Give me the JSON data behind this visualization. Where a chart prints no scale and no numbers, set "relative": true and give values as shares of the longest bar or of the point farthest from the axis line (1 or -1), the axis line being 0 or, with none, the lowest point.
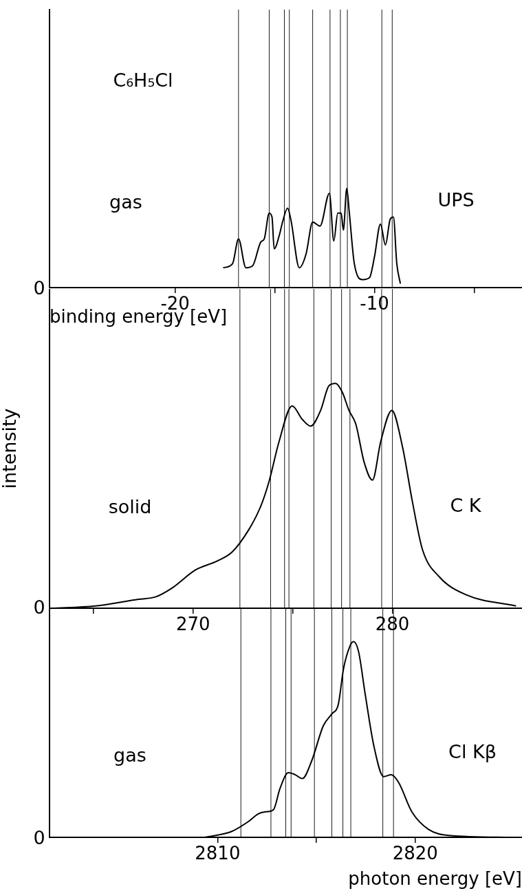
{
  "chart_data": [
    {
      "type": "line",
      "relative": true,
      "xlabel": "binding energy [eV]",
      "annotations": [
        "C₆H₅Cl",
        "gas",
        "UPS",
        "0"
      ],
      "xlim": [
        -26.3,
        -2.6
      ],
      "xticks": [
        -20,
        {
          "value": -15,
          "label": null
        },
        -10,
        {
          "value": -5,
          "label": null
        }
      ],
      "x": [
        -17.59,
        -17.12,
        -16.82,
        -16.45,
        -16.11,
        -15.7,
        -15.53,
        -15.28,
        -15.14,
        -15.03,
        -14.77,
        -14.61,
        -14.36,
        -14.19,
        -13.77,
        -13.43,
        -13.1,
        -12.73,
        -12.26,
        -12.04,
        -11.84,
        -11.67,
        -11.56,
        -11.39,
        -11.26,
        -11.01,
        -10.59,
        -10.25,
        -10.0,
        -9.7,
        -9.45,
        -9.21,
        -9.05,
        -8.88,
        -8.7
      ],
      "series": [
        {
          "color": "#000000",
          "values": [
            0.2,
            0.24,
            0.49,
            0.2,
            0.22,
            0.46,
            0.49,
            0.75,
            0.71,
            0.39,
            0.53,
            0.66,
            0.8,
            0.68,
            0.2,
            0.34,
            0.66,
            0.62,
            0.95,
            0.47,
            0.75,
            0.75,
            0.58,
            1,
            0.75,
            0.24,
            0.08,
            0.1,
            0.31,
            0.64,
            0.43,
            0.69,
            0.71,
            0.24,
            0.04
          ]
        }
      ],
      "ref_lines": [
        {
          "axis": "x",
          "value": -16.82
        },
        {
          "axis": "x",
          "value": -15.28
        },
        {
          "axis": "x",
          "value": -14.52
        },
        {
          "axis": "x",
          "value": -14.27
        },
        {
          "axis": "x",
          "value": -13.1
        },
        {
          "axis": "x",
          "value": -12.23
        },
        {
          "axis": "x",
          "value": -11.71
        },
        {
          "axis": "x",
          "value": -11.36
        },
        {
          "axis": "x",
          "value": -9.63
        },
        {
          "axis": "x",
          "value": -9.11
        }
      ]
    },
    {
      "type": "line",
      "relative": true,
      "ylabel": "intensity",
      "annotations": [
        "solid",
        "C K",
        "0"
      ],
      "xlim": [
        262.8,
        286.5
      ],
      "xticks": [
        {
          "value": 265,
          "label": null
        },
        270,
        {
          "value": 275,
          "label": null
        },
        280
      ],
      "x": [
        262.9,
        265.09,
        267.27,
        268.11,
        268.95,
        270.12,
        271.21,
        271.96,
        272.8,
        273.38,
        273.8,
        274.31,
        274.97,
        275.48,
        275.9,
        276.4,
        276.82,
        277.15,
        277.49,
        277.82,
        278.16,
        278.58,
        279.0,
        279.41,
        279.97,
        280.5,
        281.01,
        281.51,
        282.35,
        283.69,
        286.2
      ],
      "series": [
        {
          "color": "#000000",
          "values": [
            0,
            0.01,
            0.04,
            0.05,
            0.09,
            0.17,
            0.21,
            0.25,
            0.35,
            0.45,
            0.56,
            0.74,
            0.9,
            0.84,
            0.81,
            0.88,
            0.99,
            1,
            0.96,
            0.88,
            0.82,
            0.65,
            0.57,
            0.74,
            0.88,
            0.72,
            0.47,
            0.26,
            0.14,
            0.06,
            0.01
          ]
        }
      ],
      "ref_lines": [
        {
          "axis": "x",
          "value": 272.35
        },
        {
          "axis": "x",
          "value": 273.89
        },
        {
          "axis": "x",
          "value": 274.59
        },
        {
          "axis": "x",
          "value": 274.81
        },
        {
          "axis": "x",
          "value": 276.06
        },
        {
          "axis": "x",
          "value": 276.93
        },
        {
          "axis": "x",
          "value": 277.45
        },
        {
          "axis": "x",
          "value": 277.87
        },
        {
          "axis": "x",
          "value": 279.46
        },
        {
          "axis": "x",
          "value": 280.0
        }
      ]
    },
    {
      "type": "line",
      "relative": true,
      "xlabel": "photon energy [eV]",
      "annotations": [
        "gas",
        "Cl Kβ",
        "0"
      ],
      "xlim": [
        2801.5,
        2825.4
      ],
      "xticks": [
        2810,
        {
          "value": 2815,
          "label": null
        },
        2820
      ],
      "x": [
        2809.36,
        2810.71,
        2811.55,
        2812.06,
        2812.4,
        2812.82,
        2813.16,
        2813.58,
        2813.92,
        2814.29,
        2814.76,
        2815.35,
        2815.78,
        2816.11,
        2816.37,
        2816.71,
        2816.88,
        2817.13,
        2817.47,
        2817.9,
        2818.4,
        2818.79,
        2819.16,
        2819.83,
        2820.68,
        2821.69,
        2824.9
      ],
      "series": [
        {
          "color": "#000000",
          "values": [
            0,
            0.03,
            0.08,
            0.12,
            0.13,
            0.14,
            0.25,
            0.33,
            0.32,
            0.3,
            0.39,
            0.57,
            0.63,
            0.68,
            0.86,
            0.98,
            1,
            0.95,
            0.73,
            0.47,
            0.31,
            0.32,
            0.28,
            0.13,
            0.04,
            0.01,
            0
          ]
        }
      ],
      "ref_lines": [
        {
          "axis": "x",
          "value": 2811.18
        },
        {
          "axis": "x",
          "value": 2812.7
        },
        {
          "axis": "x",
          "value": 2813.45
        },
        {
          "axis": "x",
          "value": 2813.72
        },
        {
          "axis": "x",
          "value": 2814.9
        },
        {
          "axis": "x",
          "value": 2815.78
        },
        {
          "axis": "x",
          "value": 2816.34
        },
        {
          "axis": "x",
          "value": 2816.74
        },
        {
          "axis": "x",
          "value": 2818.36
        },
        {
          "axis": "x",
          "value": 2818.9
        }
      ]
    }
  ]
}
